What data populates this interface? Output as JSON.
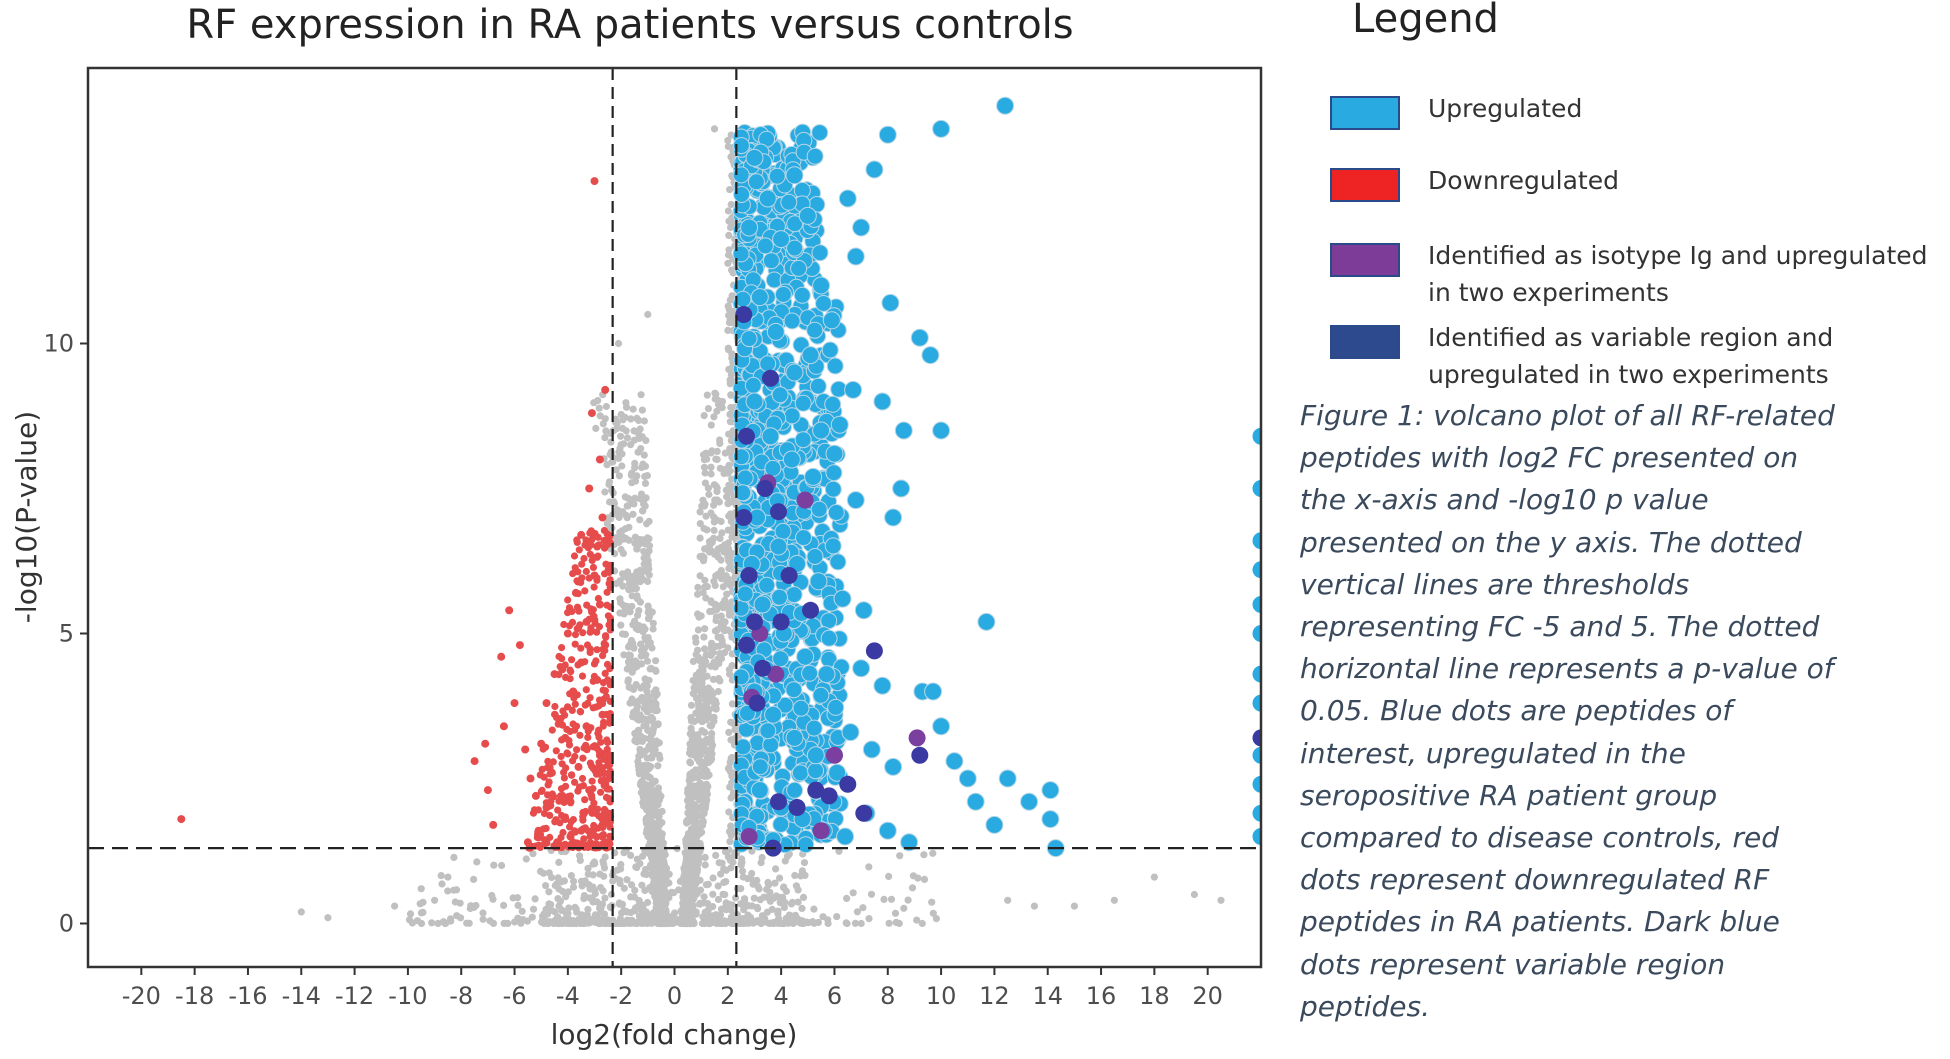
{
  "chart_data": {
    "type": "scatter",
    "title": "RF expression in RA patients versus controls",
    "xlabel": "log2(fold change)",
    "ylabel": "-log10(P-value)",
    "xlim": [
      -22,
      22
    ],
    "ylim": [
      -0.75,
      14.75
    ],
    "xticks": [
      -20,
      -18,
      -16,
      -14,
      -12,
      -10,
      -8,
      -6,
      -4,
      -2,
      0,
      2,
      4,
      6,
      8,
      10,
      12,
      14,
      16,
      18,
      20
    ],
    "yticks": [
      0,
      5,
      10
    ],
    "thresholds": {
      "x": [
        -2.32,
        2.32
      ],
      "y": 1.3
    },
    "legend_placement": "right",
    "grid": false,
    "series": [
      {
        "name": "Upregulated",
        "color": "#29abe2",
        "points": [
          [
            12.4,
            14.1
          ],
          [
            10.0,
            13.7
          ],
          [
            7.5,
            13.0
          ],
          [
            8.0,
            13.6
          ],
          [
            6.5,
            12.5
          ],
          [
            7.0,
            12.0
          ],
          [
            6.8,
            11.5
          ],
          [
            5.5,
            11.0
          ],
          [
            8.1,
            10.7
          ],
          [
            9.2,
            10.1
          ],
          [
            9.6,
            9.8
          ],
          [
            7.8,
            9.0
          ],
          [
            6.2,
            8.6
          ],
          [
            8.6,
            8.5
          ],
          [
            10.0,
            8.5
          ],
          [
            5.5,
            8.5
          ],
          [
            6.0,
            8.1
          ],
          [
            8.5,
            7.5
          ],
          [
            6.8,
            7.3
          ],
          [
            8.2,
            7.0
          ],
          [
            11.7,
            5.2
          ],
          [
            9.3,
            4.0
          ],
          [
            9.7,
            4.0
          ],
          [
            10.0,
            3.4
          ],
          [
            10.5,
            2.8
          ],
          [
            11.0,
            2.5
          ],
          [
            11.3,
            2.1
          ],
          [
            12.0,
            1.7
          ],
          [
            12.5,
            2.5
          ],
          [
            13.3,
            2.1
          ],
          [
            14.1,
            2.3
          ],
          [
            14.1,
            1.8
          ],
          [
            14.3,
            1.3
          ],
          [
            3.0,
            13.2
          ],
          [
            3.5,
            12.5
          ],
          [
            4.0,
            11.8
          ],
          [
            4.5,
            12.9
          ],
          [
            5.0,
            12.2
          ],
          [
            3.2,
            10.8
          ],
          [
            3.8,
            10.2
          ],
          [
            4.5,
            9.5
          ],
          [
            5.1,
            9.8
          ],
          [
            3.0,
            9.0
          ],
          [
            3.6,
            8.4
          ],
          [
            4.4,
            8.0
          ],
          [
            5.2,
            7.7
          ],
          [
            3.1,
            7.0
          ],
          [
            3.9,
            6.5
          ],
          [
            4.6,
            6.2
          ],
          [
            5.4,
            5.9
          ],
          [
            3.3,
            5.5
          ],
          [
            4.1,
            5.0
          ],
          [
            4.9,
            4.6
          ],
          [
            5.7,
            4.3
          ],
          [
            3.0,
            4.0
          ],
          [
            3.7,
            3.6
          ],
          [
            4.5,
            3.2
          ],
          [
            5.3,
            2.9
          ],
          [
            6.1,
            2.6
          ],
          [
            3.2,
            2.3
          ],
          [
            4.0,
            2.0
          ],
          [
            4.8,
            1.8
          ],
          [
            5.6,
            1.6
          ],
          [
            6.4,
            1.5
          ],
          [
            7.2,
            1.9
          ],
          [
            8.0,
            1.6
          ],
          [
            8.8,
            1.4
          ],
          [
            6.6,
            3.3
          ],
          [
            7.4,
            3.0
          ],
          [
            8.2,
            2.7
          ],
          [
            7.0,
            4.4
          ],
          [
            7.8,
            4.1
          ],
          [
            6.3,
            5.6
          ],
          [
            7.1,
            5.4
          ],
          [
            2.8,
            12.0
          ],
          [
            2.9,
            6.2
          ],
          [
            5.9,
            10.4
          ],
          [
            6.7,
            9.2
          ]
        ],
        "edge_points": [
          [
            22,
            8.4
          ],
          [
            22,
            7.5
          ],
          [
            22,
            6.6
          ],
          [
            22,
            6.1
          ],
          [
            22,
            5.5
          ],
          [
            22,
            5.0
          ],
          [
            22,
            4.3
          ],
          [
            22,
            3.8
          ],
          [
            22,
            2.9
          ],
          [
            22,
            2.4
          ],
          [
            22,
            1.9
          ],
          [
            22,
            1.5
          ]
        ]
      },
      {
        "name": "Downregulated",
        "color": "#e74c4c",
        "points": [
          [
            -18.5,
            1.8
          ],
          [
            -6.2,
            5.4
          ],
          [
            -5.8,
            4.8
          ],
          [
            -6.5,
            4.6
          ],
          [
            -6.0,
            3.8
          ],
          [
            -6.4,
            3.4
          ],
          [
            -7.1,
            3.1
          ],
          [
            -5.6,
            3.0
          ],
          [
            -7.5,
            2.8
          ],
          [
            -5.4,
            2.5
          ],
          [
            -7.0,
            2.3
          ],
          [
            -4.2,
            2.2
          ],
          [
            -4.8,
            2.0
          ],
          [
            -3.4,
            1.9
          ],
          [
            -6.8,
            1.7
          ],
          [
            -5.1,
            1.6
          ],
          [
            -3.9,
            1.5
          ],
          [
            -4.4,
            1.4
          ],
          [
            -5.5,
            1.4
          ],
          [
            -3.0,
            12.8
          ],
          [
            -2.6,
            9.2
          ],
          [
            -3.1,
            8.8
          ],
          [
            -2.8,
            8.0
          ],
          [
            -3.2,
            7.5
          ],
          [
            -2.7,
            7.0
          ],
          [
            -3.5,
            6.7
          ],
          [
            -2.9,
            6.5
          ],
          [
            -3.0,
            6.0
          ],
          [
            -3.7,
            5.7
          ],
          [
            -2.8,
            5.5
          ],
          [
            -3.3,
            5.2
          ],
          [
            -4.0,
            5.0
          ],
          [
            -2.6,
            4.8
          ],
          [
            -3.5,
            4.5
          ],
          [
            -4.5,
            4.3
          ],
          [
            -2.9,
            4.2
          ],
          [
            -3.8,
            4.0
          ],
          [
            -4.8,
            3.8
          ],
          [
            -2.7,
            3.6
          ],
          [
            -3.3,
            3.4
          ],
          [
            -4.1,
            3.2
          ],
          [
            -5.0,
            3.1
          ],
          [
            -2.8,
            2.9
          ],
          [
            -3.6,
            2.7
          ],
          [
            -4.6,
            2.6
          ],
          [
            -2.6,
            2.4
          ],
          [
            -3.2,
            2.3
          ],
          [
            -3.9,
            2.1
          ],
          [
            -5.2,
            2.2
          ],
          [
            -2.7,
            1.7
          ],
          [
            -3.5,
            1.6
          ],
          [
            -4.1,
            1.8
          ]
        ]
      },
      {
        "name": "Identified as isotype Ig and upregulated in two experiments",
        "color": "#7b3fa0",
        "points": [
          [
            3.5,
            7.6
          ],
          [
            4.9,
            7.3
          ],
          [
            3.2,
            5.0
          ],
          [
            3.8,
            4.3
          ],
          [
            2.9,
            3.9
          ],
          [
            9.1,
            3.2
          ],
          [
            6.0,
            2.9
          ],
          [
            5.5,
            1.6
          ],
          [
            2.8,
            1.5
          ]
        ]
      },
      {
        "name": "Identified as variable region and upregulated in two experiments",
        "color": "#3b3aa3",
        "points": [
          [
            2.6,
            10.5
          ],
          [
            3.6,
            9.4
          ],
          [
            2.7,
            8.4
          ],
          [
            3.4,
            7.5
          ],
          [
            3.9,
            7.1
          ],
          [
            2.6,
            7.0
          ],
          [
            2.8,
            6.0
          ],
          [
            4.3,
            6.0
          ],
          [
            5.1,
            5.4
          ],
          [
            3.0,
            5.2
          ],
          [
            4.0,
            5.2
          ],
          [
            2.7,
            4.8
          ],
          [
            7.5,
            4.7
          ],
          [
            3.1,
            3.8
          ],
          [
            3.3,
            4.4
          ],
          [
            9.2,
            2.9
          ],
          [
            5.3,
            2.3
          ],
          [
            4.6,
            2.0
          ],
          [
            6.5,
            2.4
          ],
          [
            7.1,
            1.9
          ],
          [
            5.8,
            2.2
          ],
          [
            3.9,
            2.1
          ],
          [
            3.7,
            1.3
          ],
          [
            22,
            3.2
          ]
        ]
      },
      {
        "name": "",
        "color": "#c0c0c0",
        "points": [
          [
            -1.8,
            8.9
          ],
          [
            -1.6,
            7.6
          ],
          [
            1.8,
            9.0
          ],
          [
            1.6,
            8.0
          ],
          [
            -2.1,
            10.0
          ],
          [
            2.1,
            12.0
          ],
          [
            1.5,
            13.7
          ],
          [
            2.0,
            13.5
          ],
          [
            -1.0,
            10.5
          ],
          [
            -14.0,
            0.2
          ],
          [
            -13.0,
            0.1
          ],
          [
            -10.5,
            0.3
          ],
          [
            -9.5,
            0.6
          ],
          [
            -9.0,
            0.4
          ],
          [
            -8.5,
            0.8
          ],
          [
            18.0,
            0.8
          ],
          [
            19.5,
            0.5
          ],
          [
            16.5,
            0.4
          ],
          [
            15.0,
            0.3
          ],
          [
            13.5,
            0.3
          ],
          [
            12.5,
            0.4
          ],
          [
            20.5,
            0.4
          ]
        ]
      }
    ]
  },
  "legend": {
    "title": "Legend",
    "items": [
      {
        "label": "Upregulated",
        "color": "#29abe2"
      },
      {
        "label": "Downregulated",
        "color": "#ee2424"
      },
      {
        "label": "Identified as isotype Ig and upregulated in two experiments",
        "color": "#7d3c98"
      },
      {
        "label": "Identified as variable region and upregulated in two experiments",
        "color": "#2e4a8e"
      }
    ]
  },
  "caption": "Figure 1: volcano plot of all RF-related peptides with log2 FC presented on the x-axis and -log10 p value presented on the y axis. The dotted vertical lines are thresholds representing FC -5 and 5. The dotted horizontal line represents a p-value of 0.05. Blue dots are peptides of interest, upregulated in the seropositive RA patient group compared to disease controls, red dots represent downregulated RF peptides in RA patients. Dark blue dots represent variable region peptides."
}
